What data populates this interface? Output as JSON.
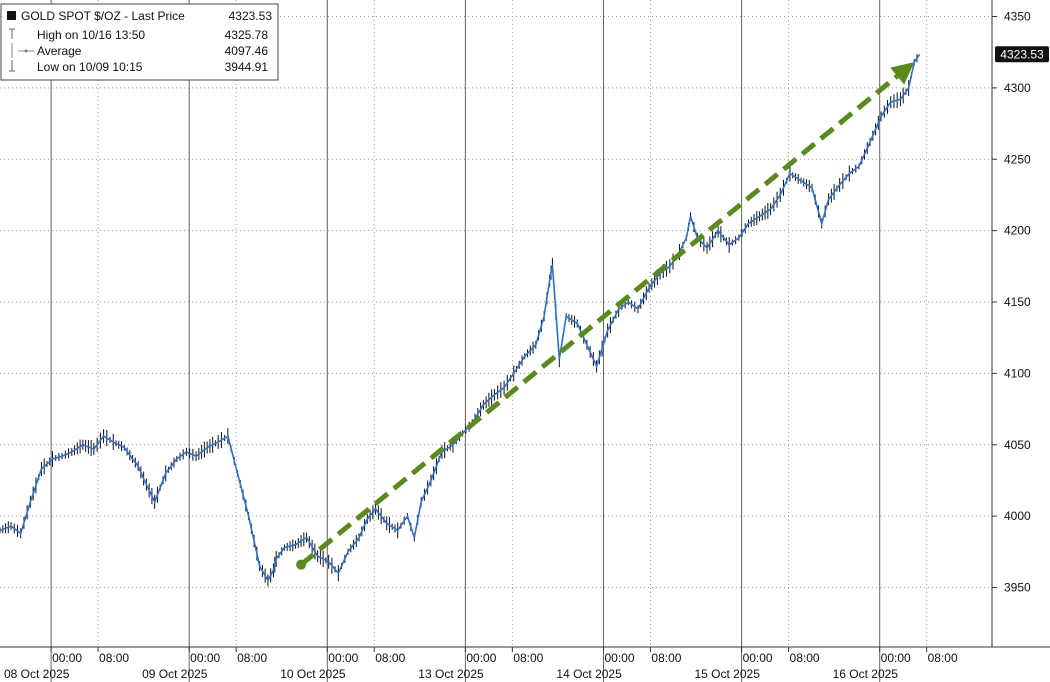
{
  "legend": {
    "title": "GOLD SPOT $/OZ - Last Price",
    "last_value": "4323.53",
    "rows": [
      {
        "label": "High on 10/16 13:50",
        "value": "4325.78"
      },
      {
        "label": "Average",
        "value": "4097.46"
      },
      {
        "label": "Low on 10/09 10:15",
        "value": "3944.91"
      }
    ]
  },
  "last_price_tag": "4323.53",
  "colors": {
    "price_line": "#2f6fd0",
    "candle": "#111111",
    "trend_arrow": "#5a8a1a",
    "last_tag_bg": "#111111"
  },
  "chart_data": {
    "type": "line",
    "title": "GOLD SPOT $/OZ - Last Price",
    "xlabel": "",
    "ylabel": "",
    "ylim": [
      3930,
      4360
    ],
    "y_ticks": [
      3950,
      4000,
      4050,
      4100,
      4150,
      4200,
      4250,
      4300,
      4350
    ],
    "x_day_labels": [
      "08 Oct 2025",
      "09 Oct 2025",
      "10 Oct 2025",
      "13 Oct 2025",
      "14 Oct 2025",
      "15 Oct 2025",
      "16 Oct 2025"
    ],
    "x_time_labels": [
      "00:00",
      "08:00"
    ],
    "grid": true,
    "legend_position": "top-left",
    "series": [
      {
        "name": "GOLD SPOT $/OZ",
        "x": [
          0.0,
          0.08,
          0.15,
          0.22,
          0.3,
          0.38,
          0.45,
          0.52,
          0.6,
          0.68,
          0.75,
          0.82,
          0.9,
          0.96,
          1.0,
          1.06,
          1.12,
          1.2,
          1.28,
          1.35,
          1.42,
          1.5,
          1.58,
          1.65,
          1.72,
          1.8,
          1.88,
          1.94,
          1.98,
          2.0,
          2.06,
          2.14,
          2.22,
          2.3,
          2.38,
          2.45,
          2.52,
          2.6,
          2.66,
          2.72,
          2.8,
          2.88,
          2.95,
          3.0,
          3.05,
          3.12,
          3.2,
          3.28,
          3.35,
          3.42,
          3.5,
          3.58,
          3.65,
          3.72,
          3.8,
          3.88,
          3.94,
          3.98,
          4.0,
          4.05,
          4.1,
          4.18,
          4.25,
          4.32,
          4.4,
          4.48,
          4.55,
          4.62,
          4.7,
          4.78,
          4.85,
          4.92,
          4.97,
          5.0,
          5.05,
          5.12,
          5.2,
          5.28,
          5.35,
          5.42,
          5.5,
          5.58,
          5.65,
          5.72,
          5.8,
          5.88,
          5.95,
          6.0,
          6.08,
          6.15,
          6.22,
          6.3,
          6.38,
          6.45,
          6.52,
          6.58,
          6.62,
          6.66
        ],
        "values": [
          3990,
          3993,
          3988,
          4010,
          4033,
          4040,
          4042,
          4045,
          4050,
          4047,
          4056,
          4052,
          4048,
          4040,
          4035,
          4022,
          4010,
          4030,
          4040,
          4045,
          4042,
          4048,
          4052,
          4056,
          4030,
          4000,
          3965,
          3955,
          3962,
          3970,
          3978,
          3980,
          3985,
          3972,
          3968,
          3960,
          3975,
          3985,
          3998,
          4005,
          3995,
          3990,
          4000,
          3985,
          4010,
          4025,
          4045,
          4050,
          4058,
          4065,
          4078,
          4085,
          4090,
          4100,
          4112,
          4120,
          4140,
          4165,
          4176,
          4110,
          4140,
          4135,
          4120,
          4105,
          4130,
          4145,
          4150,
          4145,
          4160,
          4170,
          4175,
          4185,
          4195,
          4210,
          4195,
          4188,
          4200,
          4190,
          4195,
          4205,
          4210,
          4215,
          4225,
          4240,
          4235,
          4230,
          4205,
          4222,
          4232,
          4240,
          4245,
          4262,
          4280,
          4290,
          4292,
          4300,
          4318,
          4323.53
        ]
      }
    ],
    "trend_arrow": {
      "from_x": 2.18,
      "from_y": 3966,
      "to_x": 6.62,
      "to_y": 4318
    }
  }
}
